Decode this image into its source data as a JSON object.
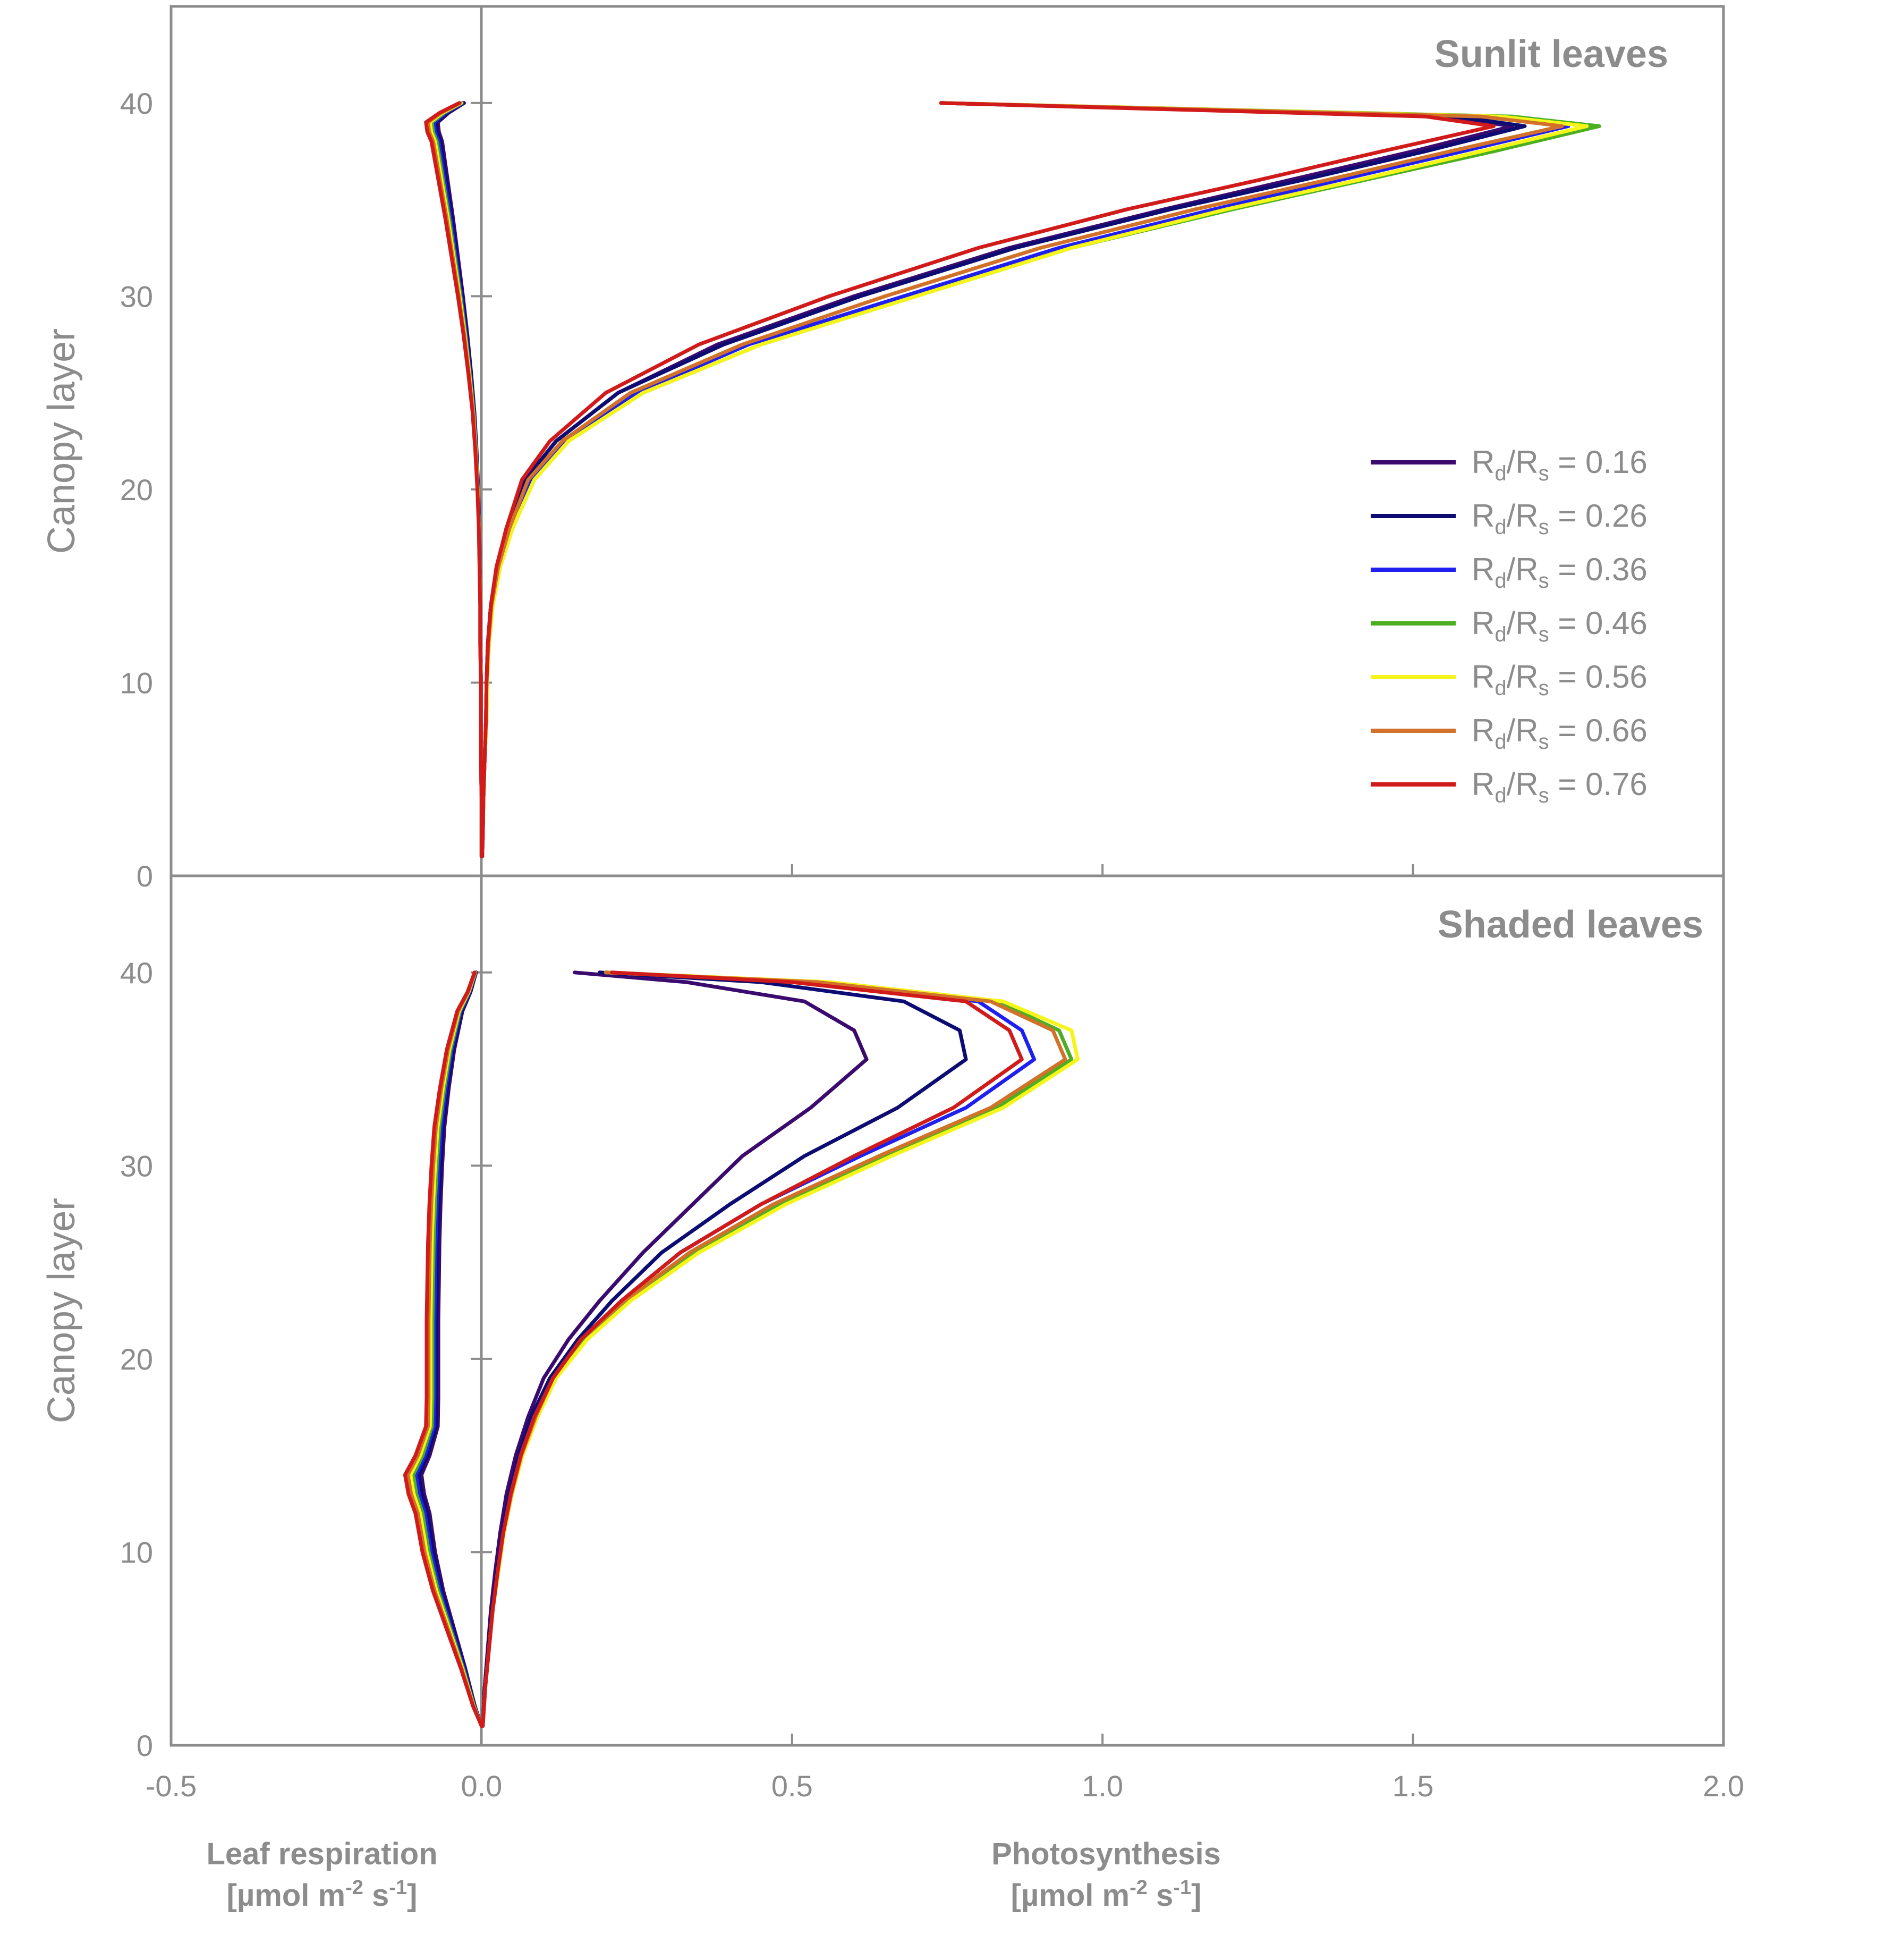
{
  "bottom_labels": {
    "respiration": {
      "line1": "Leaf respiration",
      "line2_pre": "[µmol m",
      "line2_exp1": "-2",
      "line2_mid": " s",
      "line2_exp2": "-1",
      "line2_post": "]"
    },
    "photosynthesis": {
      "line1": "Photosynthesis",
      "line2_pre": "[µmol m",
      "line2_exp1": "-2",
      "line2_mid": " s",
      "line2_exp2": "-1",
      "line2_post": "]"
    }
  },
  "chart_data": [
    {
      "type": "line",
      "title": "Sunlit leaves",
      "ylabel": "Canopy layer",
      "xlim": [
        -0.5,
        2.0
      ],
      "ylim": [
        0,
        45
      ],
      "yticks": [
        0,
        10,
        20,
        30,
        40
      ],
      "xticks": [
        0.5,
        1.0,
        1.5
      ],
      "grid": false,
      "legend": {
        "placement": "right",
        "entries": [
          {
            "label": "Rd/Rs = 0.16",
            "R": "R",
            "sub1": "d",
            "slash": "/",
            "sub2": "s",
            "value": " = 0.16",
            "color": "#3a0a6e"
          },
          {
            "label": "Rd/Rs = 0.26",
            "R": "R",
            "sub1": "d",
            "slash": "/",
            "sub2": "s",
            "value": " = 0.26",
            "color": "#0c0c72"
          },
          {
            "label": "Rd/Rs = 0.36",
            "R": "R",
            "sub1": "d",
            "slash": "/",
            "sub2": "s",
            "value": " = 0.36",
            "color": "#1f1ff0"
          },
          {
            "label": "Rd/Rs = 0.46",
            "R": "R",
            "sub1": "d",
            "slash": "/",
            "sub2": "s",
            "value": " = 0.46",
            "color": "#4caf22"
          },
          {
            "label": "Rd/Rs = 0.56",
            "R": "R",
            "sub1": "d",
            "slash": "/",
            "sub2": "s",
            "value": " = 0.56",
            "color": "#f5f51a"
          },
          {
            "label": "Rd/Rs = 0.66",
            "R": "R",
            "sub1": "d",
            "slash": "/",
            "sub2": "s",
            "value": " = 0.66",
            "color": "#d2722a"
          },
          {
            "label": "Rd/Rs = 0.76",
            "R": "R",
            "sub1": "d",
            "slash": "/",
            "sub2": "s",
            "value": " = 0.76",
            "color": "#d11a1a"
          }
        ]
      },
      "respiration": {
        "y": [
          40,
          39.5,
          39,
          38.5,
          38,
          36,
          34,
          32,
          30,
          28,
          26,
          24,
          22,
          20,
          18,
          16,
          14,
          12,
          10,
          8,
          6,
          4,
          2,
          1
        ],
        "x": [
          -0.032,
          -0.06,
          -0.08,
          -0.078,
          -0.072,
          -0.062,
          -0.052,
          -0.043,
          -0.034,
          -0.026,
          -0.019,
          -0.013,
          -0.009,
          -0.006,
          -0.004,
          -0.003,
          -0.002,
          -0.002,
          -0.001,
          -0.001,
          -0.001,
          0.0,
          0.0,
          0.0
        ]
      },
      "series": [
        {
          "x": [
            0.74,
            1.55,
            1.66,
            1.5,
            1.3,
            1.1,
            0.85,
            0.6,
            0.38,
            0.22,
            0.12,
            0.07,
            0.04,
            0.025,
            0.015,
            0.01,
            0.008,
            0.007,
            0.005,
            0.003,
            0.002,
            0.001
          ]
        },
        {
          "x": [
            0.74,
            1.57,
            1.68,
            1.52,
            1.32,
            1.11,
            0.86,
            0.61,
            0.39,
            0.22,
            0.12,
            0.07,
            0.04,
            0.025,
            0.015,
            0.01,
            0.008,
            0.007,
            0.005,
            0.003,
            0.002,
            0.001
          ]
        },
        {
          "x": [
            0.74,
            1.62,
            1.75,
            1.58,
            1.38,
            1.18,
            0.93,
            0.68,
            0.43,
            0.25,
            0.135,
            0.08,
            0.045,
            0.028,
            0.017,
            0.011,
            0.009,
            0.007,
            0.005,
            0.003,
            0.002,
            0.001
          ]
        },
        {
          "x": [
            0.74,
            1.66,
            1.8,
            1.63,
            1.42,
            1.21,
            0.95,
            0.7,
            0.45,
            0.26,
            0.14,
            0.085,
            0.05,
            0.03,
            0.018,
            0.012,
            0.009,
            0.008,
            0.005,
            0.003,
            0.002,
            0.001
          ]
        },
        {
          "x": [
            0.74,
            1.64,
            1.78,
            1.61,
            1.41,
            1.2,
            0.95,
            0.7,
            0.45,
            0.26,
            0.14,
            0.085,
            0.05,
            0.03,
            0.018,
            0.012,
            0.009,
            0.008,
            0.005,
            0.003,
            0.002,
            0.001
          ]
        },
        {
          "x": [
            0.74,
            1.61,
            1.74,
            1.56,
            1.36,
            1.15,
            0.9,
            0.65,
            0.42,
            0.24,
            0.13,
            0.075,
            0.045,
            0.027,
            0.016,
            0.011,
            0.008,
            0.007,
            0.005,
            0.003,
            0.002,
            0.001
          ]
        },
        {
          "x": [
            0.74,
            1.52,
            1.63,
            1.45,
            1.25,
            1.04,
            0.8,
            0.56,
            0.35,
            0.2,
            0.11,
            0.065,
            0.04,
            0.024,
            0.015,
            0.01,
            0.008,
            0.007,
            0.005,
            0.003,
            0.002,
            0.001
          ]
        }
      ],
      "series_y": [
        40,
        39.3,
        38.8,
        37.5,
        36,
        34.5,
        32.5,
        30,
        27.5,
        25,
        22.5,
        20.5,
        18,
        16,
        14,
        12,
        10,
        8,
        6,
        4,
        2,
        1
      ]
    },
    {
      "type": "line",
      "title": "Shaded leaves",
      "ylabel": "Canopy layer",
      "xlim": [
        -0.5,
        2.0
      ],
      "ylim": [
        0,
        45
      ],
      "yticks": [
        0,
        10,
        20,
        30,
        40
      ],
      "xticks": [
        -0.5,
        0.0,
        0.5,
        1.0,
        1.5,
        2.0
      ],
      "xtick_labels": [
        "-0.5",
        "0.0",
        "0.5",
        "1.0",
        "1.5",
        "2.0"
      ],
      "grid": false,
      "respiration": {
        "y": [
          40,
          39,
          38,
          36,
          34,
          32,
          30,
          28,
          26,
          24,
          22,
          20,
          18,
          16.5,
          15,
          14,
          13,
          12,
          11,
          10,
          8,
          6,
          4,
          2,
          1
        ],
        "x": [
          -0.01,
          -0.02,
          -0.035,
          -0.05,
          -0.06,
          -0.068,
          -0.072,
          -0.075,
          -0.077,
          -0.078,
          -0.079,
          -0.079,
          -0.079,
          -0.08,
          -0.095,
          -0.11,
          -0.105,
          -0.095,
          -0.09,
          -0.085,
          -0.07,
          -0.05,
          -0.03,
          -0.012,
          0.0
        ]
      },
      "series_y": [
        40,
        39.5,
        38.5,
        37,
        35.5,
        33,
        30.5,
        28,
        25.5,
        23,
        21,
        19,
        17,
        15,
        13,
        11,
        9,
        7,
        5,
        3,
        1
      ],
      "series": [
        {
          "x": [
            0.15,
            0.33,
            0.52,
            0.6,
            0.62,
            0.53,
            0.42,
            0.34,
            0.26,
            0.19,
            0.14,
            0.1,
            0.075,
            0.055,
            0.04,
            0.03,
            0.022,
            0.015,
            0.01,
            0.005,
            0.002
          ]
        },
        {
          "x": [
            0.19,
            0.45,
            0.68,
            0.77,
            0.78,
            0.67,
            0.52,
            0.4,
            0.29,
            0.21,
            0.155,
            0.11,
            0.08,
            0.06,
            0.045,
            0.034,
            0.025,
            0.017,
            0.011,
            0.005,
            0.002
          ]
        },
        {
          "x": [
            0.2,
            0.52,
            0.8,
            0.87,
            0.89,
            0.78,
            0.61,
            0.45,
            0.32,
            0.225,
            0.16,
            0.115,
            0.085,
            0.063,
            0.047,
            0.035,
            0.026,
            0.018,
            0.012,
            0.006,
            0.002
          ]
        },
        {
          "x": [
            0.2,
            0.55,
            0.83,
            0.93,
            0.95,
            0.83,
            0.65,
            0.48,
            0.34,
            0.235,
            0.165,
            0.12,
            0.09,
            0.066,
            0.049,
            0.036,
            0.027,
            0.018,
            0.012,
            0.006,
            0.002
          ]
        },
        {
          "x": [
            0.2,
            0.56,
            0.84,
            0.95,
            0.96,
            0.84,
            0.66,
            0.49,
            0.35,
            0.24,
            0.17,
            0.12,
            0.09,
            0.066,
            0.049,
            0.036,
            0.027,
            0.018,
            0.012,
            0.006,
            0.002
          ]
        },
        {
          "x": [
            0.2,
            0.54,
            0.82,
            0.92,
            0.94,
            0.82,
            0.64,
            0.47,
            0.335,
            0.23,
            0.16,
            0.115,
            0.087,
            0.064,
            0.048,
            0.035,
            0.026,
            0.018,
            0.012,
            0.006,
            0.002
          ]
        },
        {
          "x": [
            0.21,
            0.5,
            0.78,
            0.85,
            0.87,
            0.76,
            0.6,
            0.45,
            0.32,
            0.225,
            0.16,
            0.115,
            0.085,
            0.063,
            0.047,
            0.035,
            0.026,
            0.018,
            0.012,
            0.006,
            0.002
          ]
        }
      ]
    }
  ]
}
